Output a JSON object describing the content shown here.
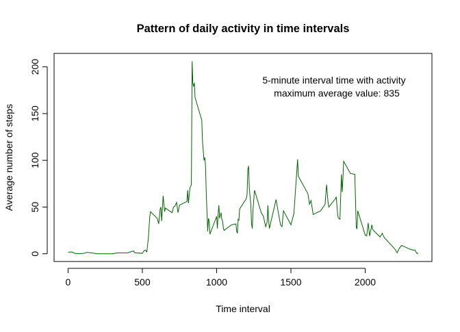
{
  "chart_data": {
    "type": "line",
    "title": "Pattern of daily activity in time intervals",
    "x_label": "Time interval",
    "y_label": "Average number of steps",
    "annotation": [
      "5-minute interval time with activity",
      "maximum average value: 835"
    ],
    "x": [
      0,
      25,
      50,
      100,
      130,
      200,
      300,
      330,
      400,
      420,
      440,
      450,
      500,
      510,
      520,
      530,
      540,
      550,
      555,
      600,
      610,
      620,
      625,
      630,
      640,
      650,
      655,
      700,
      710,
      720,
      730,
      740,
      750,
      800,
      805,
      810,
      820,
      830,
      835,
      840,
      845,
      850,
      855,
      900,
      905,
      910,
      915,
      920,
      925,
      930,
      935,
      940,
      945,
      950,
      955,
      1000,
      1005,
      1010,
      1015,
      1020,
      1030,
      1035,
      1040,
      1045,
      1050,
      1100,
      1105,
      1130,
      1135,
      1140,
      1145,
      1150,
      1155,
      1200,
      1205,
      1210,
      1215,
      1220,
      1230,
      1235,
      1240,
      1245,
      1250,
      1255,
      1300,
      1315,
      1330,
      1340,
      1345,
      1350,
      1355,
      1400,
      1430,
      1440,
      1450,
      1500,
      1520,
      1545,
      1550,
      1615,
      1625,
      1635,
      1650,
      1700,
      1730,
      1740,
      1750,
      1755,
      1800,
      1805,
      1815,
      1820,
      1830,
      1840,
      1845,
      1850,
      1855,
      1900,
      1930,
      1940,
      1945,
      1950,
      2000,
      2010,
      2020,
      2030,
      2045,
      2050,
      2100,
      2115,
      2120,
      2130,
      2200,
      2215,
      2230,
      2245,
      2300,
      2320,
      2335,
      2345,
      2350,
      2355
    ],
    "series": [
      {
        "name": "Average number of steps",
        "color": "#006400",
        "values": [
          1.7,
          2,
          0.3,
          0.3,
          1.5,
          0,
          0,
          1,
          1,
          2,
          3,
          1,
          0.5,
          3,
          4,
          2,
          16,
          40,
          45,
          38,
          32,
          48,
          50,
          35,
          62,
          45,
          49,
          44,
          50,
          51,
          55,
          44,
          52,
          56,
          68,
          54,
          70,
          74,
          206,
          182,
          179,
          183,
          167,
          143,
          120,
          110,
          100,
          103,
          95,
          66,
          45,
          24,
          38,
          35,
          21,
          40,
          27,
          42,
          52,
          38,
          44,
          37,
          35,
          28,
          25,
          31,
          31,
          32,
          24,
          22,
          37,
          36,
          48,
          59,
          64,
          90,
          94,
          70,
          53,
          32,
          27,
          47,
          58,
          68,
          44,
          40,
          29,
          34,
          52,
          36,
          27,
          58,
          31,
          29,
          46,
          31,
          43,
          101,
          83,
          64,
          53,
          57,
          42,
          46,
          53,
          74,
          55,
          50,
          59,
          61,
          41,
          38,
          37,
          85,
          66,
          80,
          99,
          86,
          85,
          28,
          27,
          46,
          20,
          19,
          33,
          19,
          31,
          26,
          18,
          22,
          20,
          17,
          5,
          1,
          6,
          9,
          5,
          4,
          4,
          1,
          0,
          1
        ]
      }
    ],
    "xlim": [
      -94.2,
      2449.2
    ],
    "ylim": [
      -8.25,
      214.4
    ],
    "xticks": [
      0,
      500,
      1000,
      1500,
      2000
    ],
    "yticks": [
      0,
      50,
      100,
      150,
      200
    ]
  }
}
